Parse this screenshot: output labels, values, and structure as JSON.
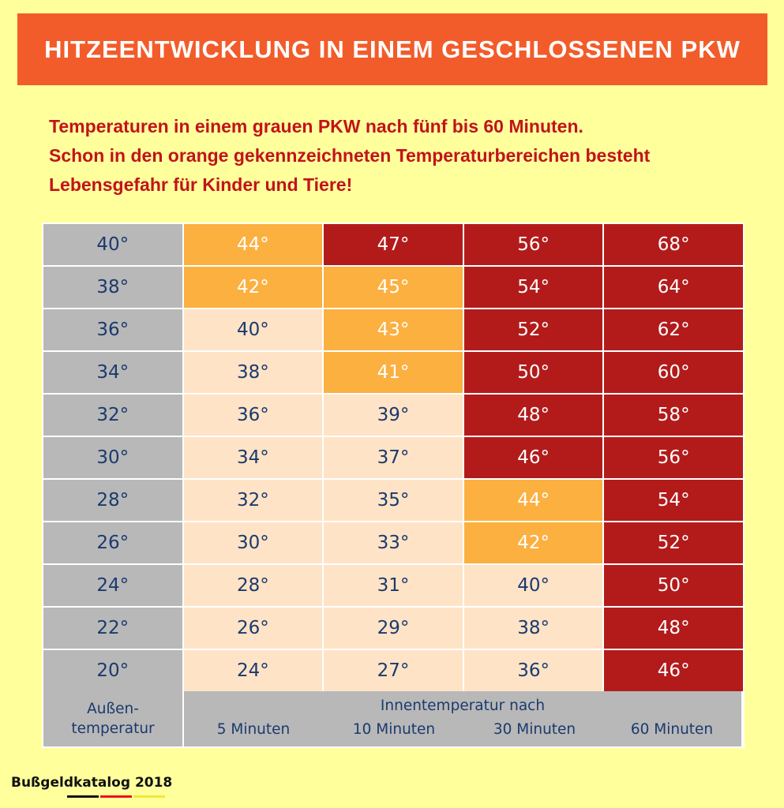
{
  "title": "HITZEENTWICKLUNG IN EINEM GESCHLOSSENEN PKW",
  "subtitle": [
    "Temperaturen in einem grauen PKW nach fünf bis 60 Minuten.",
    "Schon in den orange gekennzeichneten Temperaturbereichen besteht",
    "Lebensgefahr für Kinder und Tiere!"
  ],
  "colors": {
    "background": "#FFFF9C",
    "title_bar": "#F25C2A",
    "subtitle": "#C0141B",
    "outside": "#B8B8B8",
    "safe": "#FFE3C6",
    "danger": "#FBB040",
    "extreme": "#B31B1B",
    "text": "#1A3A6E"
  },
  "chart_data": {
    "type": "table",
    "row_header_label": [
      "Außen-",
      "temperatur"
    ],
    "column_group_label": "Innentemperatur nach",
    "columns": [
      "5 Minuten",
      "10 Minuten",
      "30 Minuten",
      "60 Minuten"
    ],
    "legend": {
      "p": "safe",
      "o": "danger (orange)",
      "r": "extreme (red)"
    },
    "rows": [
      {
        "outside": "40°",
        "values": [
          "44°",
          "47°",
          "56°",
          "68°"
        ],
        "levels": [
          "o",
          "r",
          "r",
          "r"
        ]
      },
      {
        "outside": "38°",
        "values": [
          "42°",
          "45°",
          "54°",
          "64°"
        ],
        "levels": [
          "o",
          "o",
          "r",
          "r"
        ]
      },
      {
        "outside": "36°",
        "values": [
          "40°",
          "43°",
          "52°",
          "62°"
        ],
        "levels": [
          "p",
          "o",
          "r",
          "r"
        ]
      },
      {
        "outside": "34°",
        "values": [
          "38°",
          "41°",
          "50°",
          "60°"
        ],
        "levels": [
          "p",
          "o",
          "r",
          "r"
        ]
      },
      {
        "outside": "32°",
        "values": [
          "36°",
          "39°",
          "48°",
          "58°"
        ],
        "levels": [
          "p",
          "p",
          "r",
          "r"
        ]
      },
      {
        "outside": "30°",
        "values": [
          "34°",
          "37°",
          "46°",
          "56°"
        ],
        "levels": [
          "p",
          "p",
          "r",
          "r"
        ]
      },
      {
        "outside": "28°",
        "values": [
          "32°",
          "35°",
          "44°",
          "54°"
        ],
        "levels": [
          "p",
          "p",
          "o",
          "r"
        ]
      },
      {
        "outside": "26°",
        "values": [
          "30°",
          "33°",
          "42°",
          "52°"
        ],
        "levels": [
          "p",
          "p",
          "o",
          "r"
        ]
      },
      {
        "outside": "24°",
        "values": [
          "28°",
          "31°",
          "40°",
          "50°"
        ],
        "levels": [
          "p",
          "p",
          "p",
          "r"
        ]
      },
      {
        "outside": "22°",
        "values": [
          "26°",
          "29°",
          "38°",
          "48°"
        ],
        "levels": [
          "p",
          "p",
          "p",
          "r"
        ]
      },
      {
        "outside": "20°",
        "values": [
          "24°",
          "27°",
          "36°",
          "46°"
        ],
        "levels": [
          "p",
          "p",
          "p",
          "r"
        ]
      }
    ]
  },
  "logo": {
    "text": "Bußgeldkatalog 2018",
    "flag_colors": [
      "#111111",
      "#E8141B",
      "#F5E63A"
    ]
  }
}
